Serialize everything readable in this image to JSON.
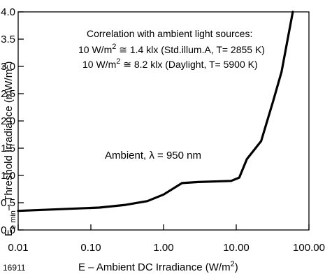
{
  "chart_data": {
    "type": "line",
    "xscale": "log",
    "xlim": [
      0.01,
      100
    ],
    "ylim": [
      0,
      4.0
    ],
    "x_tick_labels": [
      "0.01",
      "0.10",
      "1.00",
      "10.00",
      "100.00"
    ],
    "x_tick_values": [
      0.01,
      0.1,
      1,
      10,
      100
    ],
    "y_tick_labels": [
      "0.0",
      "0.5",
      "1.0",
      "1.5",
      "2.0",
      "2.5",
      "3.0",
      "3.5",
      "4.0"
    ],
    "y_tick_values": [
      0,
      0.5,
      1.0,
      1.5,
      2.0,
      2.5,
      3.0,
      3.5,
      4.0
    ],
    "xlabel": {
      "main": "E – Ambient DC Irradiance (W/m",
      "sup": "2",
      "tail": ")"
    },
    "ylabel": {
      "pre": "E",
      "sub": "e min",
      "main": "– Threshold Irradiance (mW/m",
      "sup": "2",
      "tail": ")"
    },
    "grid": false,
    "annotations": {
      "correlation_title": "Correlation with ambient light sources:",
      "line1": {
        "pre": "10 W/m",
        "sup": "2",
        "post": " ≅ 1.4 klx (Std.illum.A, T= 2855 K)"
      },
      "line2": {
        "pre": "10 W/m",
        "sup": "2",
        "post": " ≅ 8.2 klx (Daylight, T= 5900 K)"
      },
      "curve_label": "Ambient, λ = 950 nm"
    },
    "series": [
      {
        "x": [
          0.01,
          0.13,
          0.3,
          0.6,
          1.0,
          1.8,
          3.0,
          8.5,
          11,
          14,
          22,
          32,
          42,
          60
        ],
        "y": [
          0.35,
          0.41,
          0.46,
          0.53,
          0.65,
          0.86,
          0.88,
          0.9,
          0.96,
          1.3,
          1.63,
          2.35,
          2.9,
          4.0
        ]
      }
    ]
  },
  "figure_id": "16911"
}
